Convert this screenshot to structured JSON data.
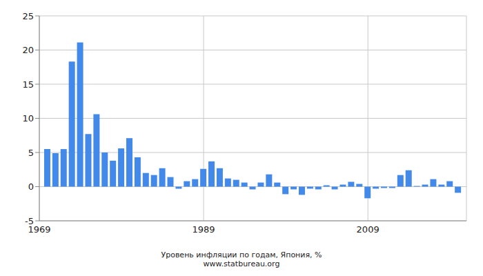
{
  "chart_data": {
    "type": "bar",
    "title": "Уровень инфляции по годам, Япония, %",
    "subtitle": "www.statbureau.org",
    "x": [
      1970,
      1971,
      1972,
      1973,
      1974,
      1975,
      1976,
      1977,
      1978,
      1979,
      1980,
      1981,
      1982,
      1983,
      1984,
      1985,
      1986,
      1987,
      1988,
      1989,
      1990,
      1991,
      1992,
      1993,
      1994,
      1995,
      1996,
      1997,
      1998,
      1999,
      2000,
      2001,
      2002,
      2003,
      2004,
      2005,
      2006,
      2007,
      2008,
      2009,
      2010,
      2011,
      2012,
      2013,
      2014,
      2015,
      2016,
      2017,
      2018,
      2019,
      2020
    ],
    "values": [
      5.5,
      4.9,
      5.5,
      18.3,
      21.1,
      7.7,
      10.6,
      5.0,
      3.8,
      5.6,
      7.1,
      4.3,
      2.0,
      1.7,
      2.7,
      1.4,
      -0.3,
      0.8,
      1.1,
      2.6,
      3.7,
      2.7,
      1.2,
      1.0,
      0.6,
      -0.4,
      0.6,
      1.8,
      0.6,
      -1.1,
      -0.4,
      -1.2,
      -0.3,
      -0.4,
      0.2,
      -0.4,
      0.3,
      0.7,
      0.4,
      -1.7,
      -0.3,
      -0.2,
      -0.2,
      1.7,
      2.4,
      0.1,
      0.3,
      1.1,
      0.3,
      0.8,
      -0.9
    ],
    "color": "#4289ea",
    "xlim": [
      1969,
      2021
    ],
    "xticks": [
      1969,
      1989,
      2009
    ],
    "ylim": [
      -5,
      25
    ],
    "yticks": [
      -5,
      0,
      5,
      10,
      15,
      20,
      25
    ],
    "grid": true
  }
}
